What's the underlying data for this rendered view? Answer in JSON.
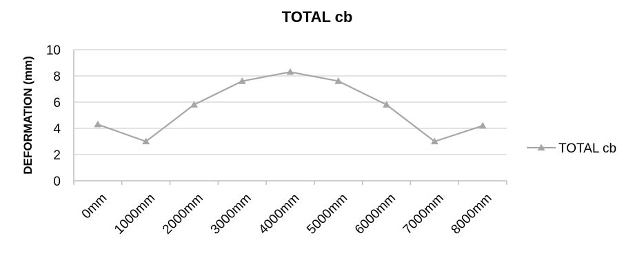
{
  "chart_data": {
    "type": "line",
    "title": "TOTAL cb",
    "xlabel": "",
    "ylabel": "DEFORMATION (mm)",
    "categories": [
      "0mm",
      "1000mm",
      "2000mm",
      "3000mm",
      "4000mm",
      "5000mm",
      "6000mm",
      "7000mm",
      "8000mm"
    ],
    "series": [
      {
        "name": "TOTAL cb",
        "values": [
          4.3,
          3.0,
          5.8,
          7.6,
          8.3,
          7.6,
          5.8,
          3.0,
          4.2
        ],
        "color": "#a6a6a6",
        "marker": "triangle"
      }
    ],
    "ylim": [
      0,
      10
    ],
    "yticks": [
      0,
      2,
      4,
      6,
      8,
      10
    ],
    "grid": "horizontal",
    "legend_position": "right",
    "gridline_color": "#d9d9d9",
    "axis_color": "#bfbfbf"
  }
}
